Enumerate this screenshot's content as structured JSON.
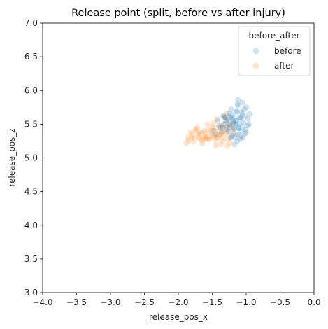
{
  "chart_data": {
    "type": "scatter",
    "title": "Release point (split, before vs after injury)",
    "xlabel": "release_pos_x",
    "ylabel": "release_pos_z",
    "xlim": [
      -4.0,
      0.0
    ],
    "ylim": [
      3.0,
      7.0
    ],
    "xticks": [
      "-4.0",
      "-3.5",
      "-3.0",
      "-2.5",
      "-2.0",
      "-1.5",
      "-1.0",
      "-0.5",
      "0.0"
    ],
    "yticks": [
      "3.0",
      "3.5",
      "4.0",
      "4.5",
      "5.0",
      "5.5",
      "6.0",
      "6.5",
      "7.0"
    ],
    "grid": false,
    "legend": {
      "title": "before_after",
      "placement": "top-right"
    },
    "series": [
      {
        "name": "before",
        "color": "#1f77b4",
        "x": [
          -1.05,
          -1.1,
          -1.15,
          -1.2,
          -1.08,
          -1.12,
          -1.18,
          -1.22,
          -1.02,
          -0.98,
          -1.0,
          -1.06,
          -1.14,
          -1.25,
          -1.28,
          -1.3,
          -1.35,
          -1.32,
          -1.16,
          -1.09,
          -1.03,
          -0.97,
          -1.11,
          -1.19,
          -1.24,
          -1.27,
          -1.13,
          -1.07,
          -1.04,
          -1.17,
          -1.21,
          -1.26,
          -1.33,
          -1.38,
          -1.15,
          -1.1,
          -1.2,
          -1.0,
          -0.95,
          -1.08,
          -1.13,
          -1.23,
          -1.29,
          -1.36,
          -1.18,
          -1.12,
          -1.06,
          -1.01,
          -1.14,
          -1.22,
          -1.31,
          -1.4,
          -1.45,
          -1.42,
          -1.12,
          -1.05,
          -1.2,
          -1.17,
          -1.09,
          -1.25,
          -0.96,
          -1.02,
          -1.15,
          -1.28,
          -1.34,
          -1.48,
          -1.19,
          -1.11,
          -1.07,
          -1.23
        ],
        "y": [
          5.45,
          5.5,
          5.55,
          5.6,
          5.4,
          5.35,
          5.52,
          5.58,
          5.62,
          5.48,
          5.38,
          5.65,
          5.7,
          5.5,
          5.42,
          5.55,
          5.45,
          5.6,
          5.3,
          5.28,
          5.72,
          5.58,
          5.46,
          5.36,
          5.48,
          5.62,
          5.8,
          5.68,
          5.52,
          5.42,
          5.33,
          5.4,
          5.5,
          5.45,
          5.55,
          5.6,
          5.5,
          5.75,
          5.65,
          5.32,
          5.25,
          5.6,
          5.55,
          5.38,
          5.44,
          5.78,
          5.82,
          5.42,
          5.68,
          5.72,
          5.6,
          5.48,
          5.35,
          5.55,
          5.86,
          5.3,
          5.64,
          5.2,
          5.58,
          5.66,
          5.5,
          5.36,
          5.5,
          5.46,
          5.62,
          5.4,
          5.54,
          5.44,
          5.6,
          5.3
        ]
      },
      {
        "name": "after",
        "color": "#ff7f0e",
        "x": [
          -1.3,
          -1.35,
          -1.4,
          -1.45,
          -1.5,
          -1.55,
          -1.6,
          -1.65,
          -1.7,
          -1.75,
          -1.8,
          -1.85,
          -1.88,
          -1.25,
          -1.28,
          -1.32,
          -1.38,
          -1.42,
          -1.47,
          -1.52,
          -1.58,
          -1.62,
          -1.68,
          -1.72,
          -1.78,
          -1.82,
          -1.2,
          -1.22,
          -1.26,
          -1.33,
          -1.36,
          -1.44,
          -1.48,
          -1.56,
          -1.64,
          -1.7,
          -1.76,
          -1.3,
          -1.34,
          -1.4,
          -1.46,
          -1.54,
          -1.6,
          -1.66,
          -1.27,
          -1.31,
          -1.37,
          -1.43,
          -1.18,
          -1.24,
          -1.29,
          -1.35,
          -1.41,
          -1.5,
          -1.57,
          -1.63,
          -1.74,
          -1.86,
          -1.26,
          -1.39,
          -1.45,
          -1.52,
          -1.15,
          -1.21,
          -1.33,
          -1.47,
          -1.59,
          -1.69,
          -1.8,
          -1.28
        ],
        "y": [
          5.35,
          5.3,
          5.4,
          5.25,
          5.32,
          5.28,
          5.36,
          5.22,
          5.3,
          5.4,
          5.34,
          5.26,
          5.22,
          5.45,
          5.38,
          5.5,
          5.2,
          5.34,
          5.44,
          5.36,
          5.3,
          5.4,
          5.28,
          5.45,
          5.24,
          5.38,
          5.42,
          5.3,
          5.55,
          5.62,
          5.48,
          5.3,
          5.52,
          5.42,
          5.26,
          5.35,
          5.3,
          5.6,
          5.25,
          5.46,
          5.4,
          5.28,
          5.32,
          5.38,
          5.28,
          5.42,
          5.36,
          5.58,
          5.5,
          5.22,
          5.66,
          5.44,
          5.3,
          5.46,
          5.5,
          5.3,
          5.42,
          5.3,
          5.5,
          5.34,
          5.18,
          5.4,
          5.35,
          5.45,
          5.38,
          5.32,
          5.28,
          5.36,
          5.3,
          5.18
        ]
      }
    ]
  }
}
